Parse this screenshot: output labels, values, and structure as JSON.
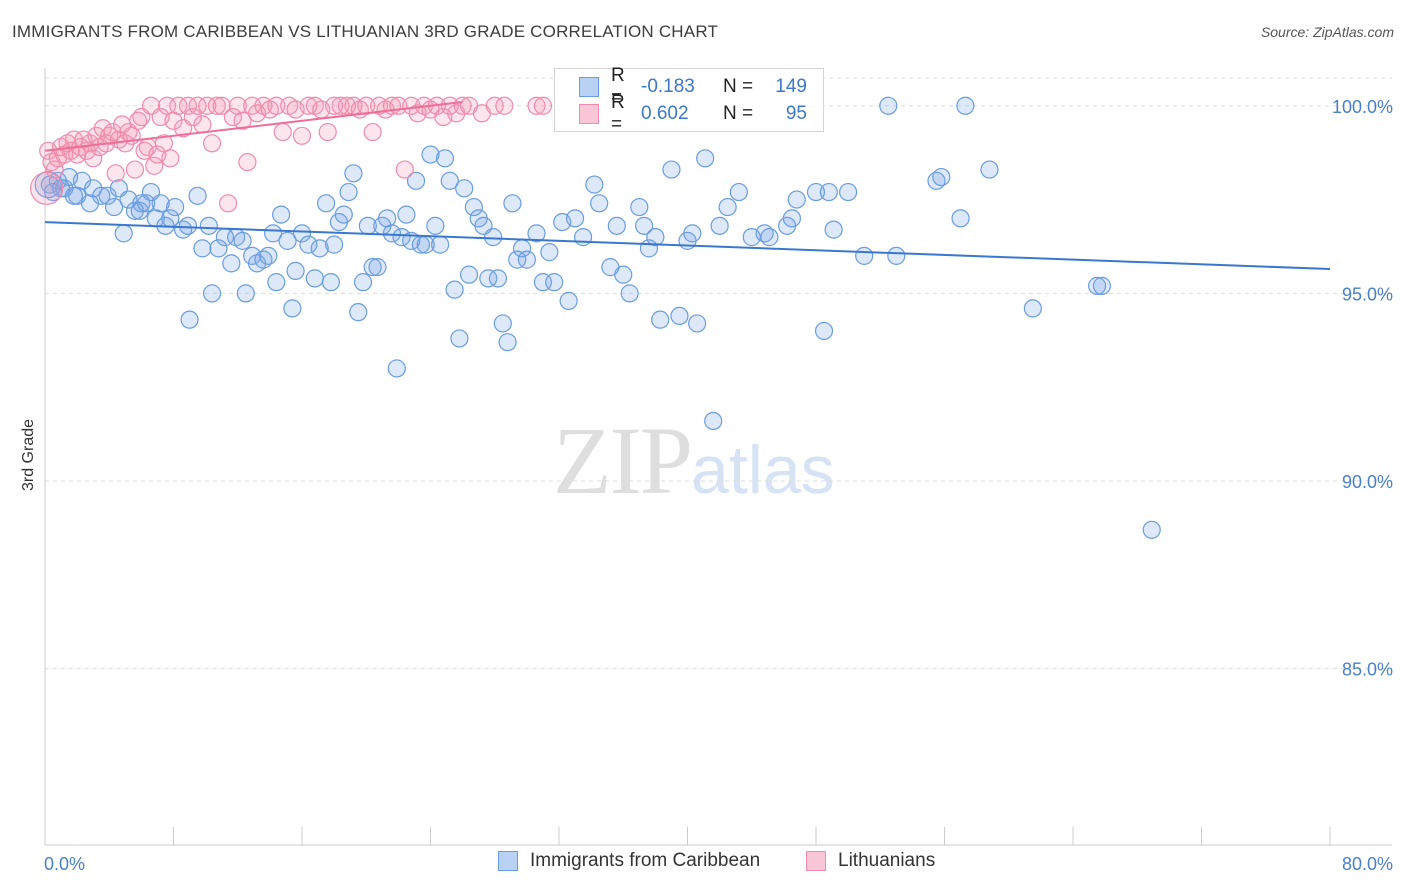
{
  "header": {
    "title": "IMMIGRANTS FROM CARIBBEAN VS LITHUANIAN 3RD GRADE CORRELATION CHART",
    "source": "Source: ZipAtlas.com"
  },
  "watermark": {
    "zip": "ZIP",
    "atlas": "atlas"
  },
  "legend": {
    "series": [
      {
        "r_label": "R =",
        "r_value": "-0.183",
        "n_label": "N =",
        "n_value": "149"
      },
      {
        "r_label": "R =",
        "r_value": "0.602",
        "n_label": "N =",
        "n_value": "95"
      }
    ]
  },
  "bottom_legend": [
    "Immigrants from Caribbean",
    "Lithuanians"
  ],
  "chart_data": {
    "type": "scatter",
    "title": "IMMIGRANTS FROM CARIBBEAN VS LITHUANIAN 3RD GRADE CORRELATION CHART",
    "xlabel": "",
    "ylabel": "3rd Grade",
    "xlim": [
      0,
      80
    ],
    "ylim": [
      80.3,
      100.9
    ],
    "x_tick_labels": [
      "0.0%",
      "80.0%"
    ],
    "y_ticks": [
      100,
      95,
      90,
      85
    ],
    "y_tick_labels": [
      "100.0%",
      "95.0%",
      "90.0%",
      "85.0%"
    ],
    "grid": true,
    "colors": {
      "blue": "#6a9de0",
      "blue_fill": "rgba(120,165,230,0.25)",
      "blue_line": "#3a78cf",
      "pink": "#f08cad",
      "pink_fill": "rgba(245,150,180,0.25)",
      "pink_line": "#ee6e98"
    },
    "series": [
      {
        "name": "Immigrants from Caribbean",
        "R": -0.183,
        "N": 149,
        "trend": {
          "x": [
            0,
            80
          ],
          "y": [
            96.9,
            95.65
          ]
        },
        "points": [
          [
            0.3,
            97.9
          ],
          [
            0.8,
            98.0
          ],
          [
            1.2,
            97.8
          ],
          [
            1.5,
            98.1
          ],
          [
            2.0,
            97.6
          ],
          [
            2.3,
            98.0
          ],
          [
            2.8,
            97.4
          ],
          [
            3.0,
            97.8
          ],
          [
            3.5,
            97.6
          ],
          [
            3.9,
            97.6
          ],
          [
            4.3,
            97.3
          ],
          [
            4.6,
            97.8
          ],
          [
            4.9,
            96.6
          ],
          [
            5.2,
            97.5
          ],
          [
            5.6,
            97.2
          ],
          [
            5.9,
            97.2
          ],
          [
            6.3,
            97.4
          ],
          [
            6.6,
            97.7
          ],
          [
            6.9,
            97.0
          ],
          [
            7.2,
            97.4
          ],
          [
            7.5,
            96.8
          ],
          [
            7.8,
            97.0
          ],
          [
            8.1,
            97.3
          ],
          [
            8.6,
            96.7
          ],
          [
            9.0,
            94.3
          ],
          [
            9.5,
            97.6
          ],
          [
            9.8,
            96.2
          ],
          [
            10.2,
            96.8
          ],
          [
            10.4,
            95.0
          ],
          [
            10.8,
            96.2
          ],
          [
            11.2,
            96.5
          ],
          [
            11.6,
            95.8
          ],
          [
            11.9,
            96.5
          ],
          [
            12.3,
            96.4
          ],
          [
            12.5,
            95.0
          ],
          [
            12.9,
            96.0
          ],
          [
            13.2,
            95.8
          ],
          [
            13.6,
            95.9
          ],
          [
            13.9,
            96.0
          ],
          [
            14.2,
            96.6
          ],
          [
            14.4,
            95.3
          ],
          [
            14.7,
            97.1
          ],
          [
            15.1,
            96.4
          ],
          [
            15.4,
            94.6
          ],
          [
            15.6,
            95.6
          ],
          [
            16.0,
            96.6
          ],
          [
            16.4,
            96.3
          ],
          [
            16.8,
            95.4
          ],
          [
            17.1,
            96.2
          ],
          [
            17.5,
            97.4
          ],
          [
            17.8,
            95.3
          ],
          [
            18.0,
            96.3
          ],
          [
            18.3,
            96.9
          ],
          [
            18.6,
            97.1
          ],
          [
            18.9,
            97.7
          ],
          [
            19.2,
            98.2
          ],
          [
            19.5,
            94.5
          ],
          [
            19.8,
            95.3
          ],
          [
            20.1,
            96.8
          ],
          [
            20.4,
            95.7
          ],
          [
            20.7,
            95.7
          ],
          [
            21.0,
            96.8
          ],
          [
            21.3,
            97.0
          ],
          [
            21.6,
            96.6
          ],
          [
            21.9,
            93.0
          ],
          [
            22.2,
            96.5
          ],
          [
            22.5,
            97.1
          ],
          [
            22.8,
            96.4
          ],
          [
            23.1,
            98.0
          ],
          [
            23.4,
            96.3
          ],
          [
            23.7,
            96.3
          ],
          [
            24.0,
            98.7
          ],
          [
            24.3,
            96.8
          ],
          [
            24.6,
            96.3
          ],
          [
            24.9,
            98.6
          ],
          [
            25.2,
            98.0
          ],
          [
            25.5,
            95.1
          ],
          [
            25.8,
            93.8
          ],
          [
            26.1,
            97.8
          ],
          [
            26.4,
            95.5
          ],
          [
            26.7,
            97.3
          ],
          [
            27.0,
            97.0
          ],
          [
            27.3,
            96.8
          ],
          [
            27.6,
            95.4
          ],
          [
            27.9,
            96.5
          ],
          [
            28.2,
            95.4
          ],
          [
            28.5,
            94.2
          ],
          [
            28.8,
            93.7
          ],
          [
            29.1,
            97.4
          ],
          [
            29.4,
            95.9
          ],
          [
            29.7,
            96.2
          ],
          [
            30.0,
            95.9
          ],
          [
            30.6,
            96.6
          ],
          [
            31.0,
            95.3
          ],
          [
            31.4,
            96.1
          ],
          [
            31.7,
            95.3
          ],
          [
            32.2,
            96.9
          ],
          [
            32.6,
            94.8
          ],
          [
            33.0,
            97.0
          ],
          [
            33.5,
            96.5
          ],
          [
            34.2,
            97.9
          ],
          [
            34.5,
            97.4
          ],
          [
            35.2,
            95.7
          ],
          [
            35.6,
            96.8
          ],
          [
            36.0,
            95.5
          ],
          [
            36.4,
            95.0
          ],
          [
            37.0,
            97.3
          ],
          [
            37.3,
            96.8
          ],
          [
            37.6,
            96.2
          ],
          [
            38.0,
            96.5
          ],
          [
            38.3,
            94.3
          ],
          [
            39.0,
            98.3
          ],
          [
            39.5,
            94.4
          ],
          [
            40.0,
            96.4
          ],
          [
            40.3,
            96.6
          ],
          [
            40.6,
            94.2
          ],
          [
            41.1,
            98.6
          ],
          [
            41.6,
            91.6
          ],
          [
            42.0,
            96.8
          ],
          [
            42.5,
            97.3
          ],
          [
            43.2,
            97.7
          ],
          [
            44.0,
            96.5
          ],
          [
            44.8,
            96.6
          ],
          [
            45.1,
            96.5
          ],
          [
            46.2,
            96.8
          ],
          [
            46.5,
            97.0
          ],
          [
            46.8,
            97.5
          ],
          [
            48.0,
            97.7
          ],
          [
            48.5,
            94.0
          ],
          [
            48.8,
            97.7
          ],
          [
            49.1,
            96.7
          ],
          [
            50.0,
            97.7
          ],
          [
            51.0,
            96.0
          ],
          [
            52.5,
            100.0
          ],
          [
            53.0,
            96.0
          ],
          [
            55.5,
            98.0
          ],
          [
            55.8,
            98.1
          ],
          [
            57.0,
            97.0
          ],
          [
            57.3,
            100.0
          ],
          [
            58.8,
            98.3
          ],
          [
            61.5,
            94.6
          ],
          [
            65.5,
            95.2
          ],
          [
            65.8,
            95.2
          ],
          [
            68.9,
            88.7
          ],
          [
            0.5,
            97.7
          ],
          [
            1.0,
            97.8
          ],
          [
            1.8,
            97.6
          ],
          [
            6.0,
            97.4
          ],
          [
            8.9,
            96.8
          ]
        ]
      },
      {
        "name": "Lithuanians",
        "R": 0.602,
        "N": 95,
        "trend": {
          "x": [
            0,
            26
          ],
          "y": [
            98.8,
            100.1
          ]
        },
        "points": [
          [
            0.2,
            98.8
          ],
          [
            0.4,
            98.5
          ],
          [
            0.6,
            98.3
          ],
          [
            0.8,
            98.6
          ],
          [
            1.0,
            98.9
          ],
          [
            1.2,
            98.7
          ],
          [
            1.4,
            99.0
          ],
          [
            1.6,
            98.8
          ],
          [
            1.8,
            99.1
          ],
          [
            2.0,
            98.7
          ],
          [
            2.2,
            98.9
          ],
          [
            2.4,
            99.1
          ],
          [
            2.6,
            98.8
          ],
          [
            2.8,
            99.0
          ],
          [
            3.0,
            98.6
          ],
          [
            3.2,
            99.2
          ],
          [
            3.4,
            98.9
          ],
          [
            3.6,
            99.4
          ],
          [
            3.8,
            99.0
          ],
          [
            4.0,
            99.2
          ],
          [
            4.2,
            99.3
          ],
          [
            4.4,
            98.2
          ],
          [
            4.6,
            99.1
          ],
          [
            4.8,
            99.5
          ],
          [
            5.0,
            99.0
          ],
          [
            5.2,
            99.3
          ],
          [
            5.4,
            99.2
          ],
          [
            5.6,
            98.3
          ],
          [
            5.8,
            99.6
          ],
          [
            6.0,
            99.7
          ],
          [
            6.2,
            98.8
          ],
          [
            6.4,
            98.9
          ],
          [
            6.6,
            100.0
          ],
          [
            6.8,
            98.4
          ],
          [
            7.0,
            98.7
          ],
          [
            7.2,
            99.7
          ],
          [
            7.4,
            99.0
          ],
          [
            7.6,
            100.0
          ],
          [
            7.8,
            98.6
          ],
          [
            8.0,
            99.6
          ],
          [
            8.3,
            100.0
          ],
          [
            8.6,
            99.4
          ],
          [
            8.9,
            100.0
          ],
          [
            9.2,
            99.7
          ],
          [
            9.5,
            100.0
          ],
          [
            9.8,
            99.5
          ],
          [
            10.1,
            100.0
          ],
          [
            10.4,
            99.0
          ],
          [
            10.7,
            100.0
          ],
          [
            11.0,
            100.0
          ],
          [
            11.4,
            97.4
          ],
          [
            11.7,
            99.7
          ],
          [
            12.0,
            100.0
          ],
          [
            12.3,
            99.6
          ],
          [
            12.6,
            98.5
          ],
          [
            12.9,
            100.0
          ],
          [
            13.2,
            99.8
          ],
          [
            13.6,
            100.0
          ],
          [
            14.0,
            99.9
          ],
          [
            14.4,
            100.0
          ],
          [
            14.8,
            99.3
          ],
          [
            15.2,
            100.0
          ],
          [
            15.6,
            99.9
          ],
          [
            16.0,
            99.2
          ],
          [
            16.4,
            100.0
          ],
          [
            16.8,
            100.0
          ],
          [
            17.2,
            99.9
          ],
          [
            17.6,
            99.3
          ],
          [
            18.0,
            100.0
          ],
          [
            18.4,
            100.0
          ],
          [
            18.8,
            100.0
          ],
          [
            19.2,
            100.0
          ],
          [
            19.6,
            99.9
          ],
          [
            20.0,
            100.0
          ],
          [
            20.4,
            99.3
          ],
          [
            20.8,
            100.0
          ],
          [
            21.2,
            99.9
          ],
          [
            21.6,
            100.0
          ],
          [
            22.0,
            100.0
          ],
          [
            22.4,
            98.3
          ],
          [
            22.8,
            100.0
          ],
          [
            23.2,
            99.8
          ],
          [
            23.6,
            100.0
          ],
          [
            24.0,
            99.9
          ],
          [
            24.4,
            100.0
          ],
          [
            24.8,
            99.7
          ],
          [
            25.2,
            100.0
          ],
          [
            25.6,
            99.8
          ],
          [
            26.0,
            100.0
          ],
          [
            26.4,
            100.0
          ],
          [
            27.2,
            99.8
          ],
          [
            28.0,
            100.0
          ],
          [
            28.6,
            100.0
          ],
          [
            30.6,
            100.0
          ],
          [
            31.0,
            100.0
          ]
        ]
      }
    ]
  }
}
